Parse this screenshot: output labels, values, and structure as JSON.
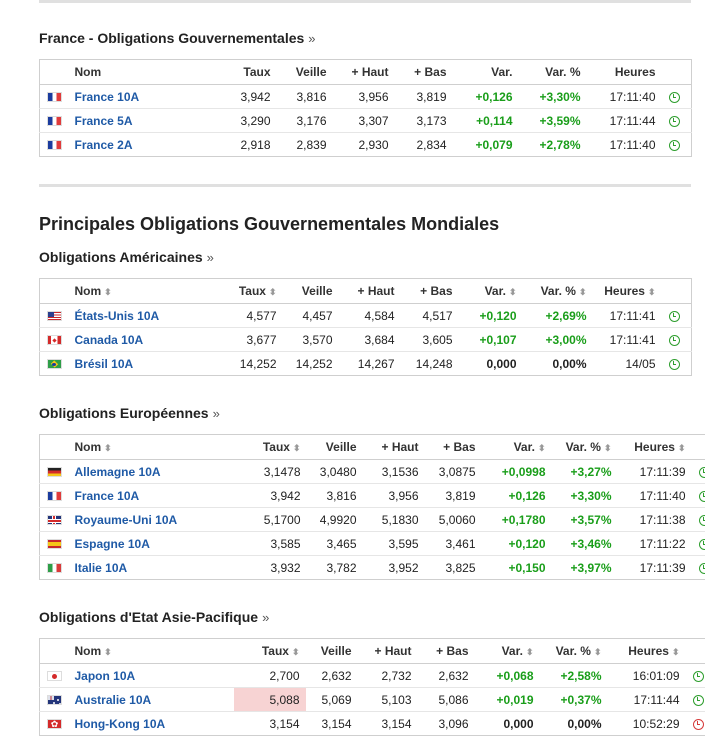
{
  "sections": {
    "france": {
      "title": "France - Obligations Gouvernementales",
      "more": "»",
      "headers": [
        "Nom",
        "Taux",
        "Veille",
        "+ Haut",
        "+ Bas",
        "Var.",
        "Var. %",
        "Heures"
      ],
      "rows": [
        {
          "flag": "france-flag-icon",
          "name": "France 10A",
          "taux": "3,942",
          "veille": "3,816",
          "haut": "3,956",
          "bas": "3,819",
          "var": "+0,126",
          "varpct": "+3,30%",
          "heure": "17:11:40"
        },
        {
          "flag": "france-flag-icon",
          "name": "France 5A",
          "taux": "3,290",
          "veille": "3,176",
          "haut": "3,307",
          "bas": "3,173",
          "var": "+0,114",
          "varpct": "+3,59%",
          "heure": "17:11:44"
        },
        {
          "flag": "france-flag-icon",
          "name": "France 2A",
          "taux": "2,918",
          "veille": "2,839",
          "haut": "2,930",
          "bas": "2,834",
          "var": "+0,079",
          "varpct": "+2,78%",
          "heure": "17:11:40"
        }
      ]
    },
    "main_title": "Principales Obligations Gouvernementales Mondiales",
    "americas": {
      "title": "Obligations Américaines",
      "more": "»",
      "headers": [
        "Nom",
        "Taux",
        "Veille",
        "+ Haut",
        "+ Bas",
        "Var.",
        "Var. %",
        "Heures"
      ],
      "rows": [
        {
          "flag": "usa-flag-icon",
          "name": "États-Unis 10A",
          "taux": "4,577",
          "veille": "4,457",
          "haut": "4,584",
          "bas": "4,517",
          "var": "+0,120",
          "varpct": "+2,69%",
          "heure": "17:11:41"
        },
        {
          "flag": "canada-flag-icon",
          "name": "Canada 10A",
          "taux": "3,677",
          "veille": "3,570",
          "haut": "3,684",
          "bas": "3,605",
          "var": "+0,107",
          "varpct": "+3,00%",
          "heure": "17:11:41"
        },
        {
          "flag": "brazil-flag-icon",
          "name": "Brésil 10A",
          "taux": "14,252",
          "veille": "14,252",
          "haut": "14,267",
          "bas": "14,248",
          "var": "0,000",
          "varpct": "0,00%",
          "heure": "14/05"
        }
      ]
    },
    "europe": {
      "title": "Obligations Européennes",
      "more": "»",
      "headers": [
        "Nom",
        "Taux",
        "Veille",
        "+ Haut",
        "+ Bas",
        "Var.",
        "Var. %",
        "Heures"
      ],
      "rows": [
        {
          "flag": "germany-flag-icon",
          "name": "Allemagne 10A",
          "taux": "3,1478",
          "veille": "3,0480",
          "haut": "3,1536",
          "bas": "3,0875",
          "var": "+0,0998",
          "varpct": "+3,27%",
          "heure": "17:11:39"
        },
        {
          "flag": "france-flag-icon",
          "name": "France 10A",
          "taux": "3,942",
          "veille": "3,816",
          "haut": "3,956",
          "bas": "3,819",
          "var": "+0,126",
          "varpct": "+3,30%",
          "heure": "17:11:40"
        },
        {
          "flag": "uk-flag-icon",
          "name": "Royaume-Uni 10A",
          "taux": "5,1700",
          "veille": "4,9920",
          "haut": "5,1830",
          "bas": "5,0060",
          "var": "+0,1780",
          "varpct": "+3,57%",
          "heure": "17:11:38"
        },
        {
          "flag": "spain-flag-icon",
          "name": "Espagne 10A",
          "taux": "3,585",
          "veille": "3,465",
          "haut": "3,595",
          "bas": "3,461",
          "var": "+0,120",
          "varpct": "+3,46%",
          "heure": "17:11:22"
        },
        {
          "flag": "italy-flag-icon",
          "name": "Italie 10A",
          "taux": "3,932",
          "veille": "3,782",
          "haut": "3,952",
          "bas": "3,825",
          "var": "+0,150",
          "varpct": "+3,97%",
          "heure": "17:11:39"
        }
      ]
    },
    "asia": {
      "title": "Obligations d'Etat Asie-Pacifique",
      "more": "»",
      "headers": [
        "Nom",
        "Taux",
        "Veille",
        "+ Haut",
        "+ Bas",
        "Var.",
        "Var. %",
        "Heures"
      ],
      "rows": [
        {
          "flag": "japan-flag-icon",
          "name": "Japon 10A",
          "taux": "2,700",
          "veille": "2,632",
          "haut": "2,732",
          "bas": "2,632",
          "var": "+0,068",
          "varpct": "+2,58%",
          "heure": "16:01:09"
        },
        {
          "flag": "australia-flag-icon",
          "name": "Australie 10A",
          "taux": "5,088",
          "veille": "5,069",
          "haut": "5,103",
          "bas": "5,086",
          "var": "+0,019",
          "varpct": "+0,37%",
          "heure": "17:11:44"
        },
        {
          "flag": "hongkong-flag-icon",
          "name": "Hong-Kong 10A",
          "taux": "3,154",
          "veille": "3,154",
          "haut": "3,154",
          "bas": "3,096",
          "var": "0,000",
          "varpct": "0,00%",
          "heure": "10:52:29"
        }
      ]
    }
  },
  "icons": {
    "clock": "clock-icon",
    "sort": "sort-arrows-icon"
  },
  "colors": {
    "up": "#1a9e1a",
    "link": "#1f5aa6",
    "clock_live": "#2e9e2e",
    "clock_closed": "#d63b3b",
    "highlight": "#f7d3d3"
  }
}
